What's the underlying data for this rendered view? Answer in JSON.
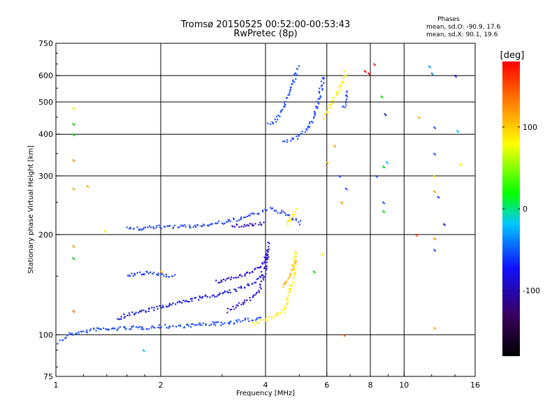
{
  "chart_data": {
    "type": "scatter",
    "title": "Tromsø 20150525 00:52:00-00:53:43",
    "subtitle": "RwPretec (8p)",
    "xlabel": "Frequency [MHz]",
    "ylabel": "Stationary phase Virtual Height [km]",
    "x_scale": "log",
    "y_scale": "log",
    "xlim": [
      1,
      16
    ],
    "ylim": [
      75,
      750
    ],
    "x_ticks": [
      1,
      2,
      4,
      6,
      8,
      10,
      16
    ],
    "y_ticks": [
      75,
      100,
      200,
      300,
      400,
      500,
      600,
      750
    ],
    "grid": true,
    "stats": {
      "heading": "Phases",
      "line_o": "mean, sd,O: -90.9, 17.6",
      "line_x": "mean, sd,X:  90.1, 19.6"
    },
    "colorbar": {
      "label": "[deg]",
      "ticks": [
        "100",
        "0",
        "-100"
      ],
      "tick_values": [
        100,
        0,
        -100
      ],
      "range": [
        -180,
        180
      ],
      "colors": [
        "#000000",
        "#3a0060",
        "#1010ff",
        "#00c8ff",
        "#00ff00",
        "#ffff00",
        "#ff8000",
        "#ff0000"
      ]
    },
    "traces": [
      {
        "color": "#1e50ff",
        "points": [
          [
            1.02,
            95
          ],
          [
            1.05,
            97
          ],
          [
            1.08,
            100
          ],
          [
            1.12,
            101
          ],
          [
            1.2,
            102
          ],
          [
            1.3,
            104
          ],
          [
            1.45,
            104
          ],
          [
            1.6,
            105
          ],
          [
            1.8,
            105
          ],
          [
            2.0,
            106
          ],
          [
            2.2,
            106
          ],
          [
            2.5,
            107
          ],
          [
            2.8,
            108
          ],
          [
            3.0,
            108
          ],
          [
            3.2,
            109
          ],
          [
            3.4,
            110
          ],
          [
            3.6,
            111
          ],
          [
            3.8,
            112
          ],
          [
            3.9,
            114
          ]
        ]
      },
      {
        "color": "#1a20e0",
        "points": [
          [
            1.5,
            112
          ],
          [
            1.6,
            115
          ],
          [
            1.8,
            118
          ],
          [
            2.0,
            121
          ],
          [
            2.2,
            124
          ],
          [
            2.4,
            127
          ],
          [
            2.6,
            129
          ],
          [
            2.8,
            131
          ],
          [
            3.0,
            133
          ],
          [
            3.2,
            135
          ],
          [
            3.4,
            138
          ],
          [
            3.6,
            142
          ],
          [
            3.8,
            147
          ],
          [
            3.95,
            155
          ]
        ]
      },
      {
        "color": "#2a10c8",
        "points": [
          [
            2.9,
            144
          ],
          [
            3.0,
            146
          ],
          [
            3.2,
            148
          ],
          [
            3.4,
            150
          ],
          [
            3.6,
            153
          ],
          [
            3.8,
            158
          ],
          [
            3.9,
            163
          ],
          [
            4.0,
            170
          ],
          [
            4.05,
            180
          ]
        ]
      },
      {
        "color": "#3a1cd0",
        "points": [
          [
            3.1,
            118
          ],
          [
            3.3,
            122
          ],
          [
            3.5,
            126
          ],
          [
            3.7,
            130
          ],
          [
            3.85,
            138
          ],
          [
            3.95,
            147
          ],
          [
            4.0,
            160
          ],
          [
            4.05,
            175
          ],
          [
            4.1,
            190
          ]
        ]
      },
      {
        "color": "#1e3cff",
        "points": [
          [
            1.6,
            150
          ],
          [
            1.7,
            152
          ],
          [
            1.8,
            153
          ],
          [
            1.9,
            153
          ],
          [
            2.0,
            152
          ],
          [
            2.1,
            151
          ],
          [
            2.2,
            150
          ]
        ]
      },
      {
        "color": "#2a4cf0",
        "points": [
          [
            1.6,
            210
          ],
          [
            1.7,
            208
          ],
          [
            1.8,
            209
          ],
          [
            1.9,
            210
          ],
          [
            2.0,
            211
          ],
          [
            2.3,
            211
          ],
          [
            2.5,
            212
          ],
          [
            2.7,
            214
          ],
          [
            2.9,
            216
          ],
          [
            3.1,
            218
          ],
          [
            3.3,
            222
          ],
          [
            3.5,
            226
          ],
          [
            3.7,
            230
          ],
          [
            3.9,
            234
          ],
          [
            4.1,
            238
          ],
          [
            4.3,
            236
          ],
          [
            4.5,
            232
          ],
          [
            4.7,
            226
          ],
          [
            4.9,
            220
          ],
          [
            5.1,
            215
          ]
        ]
      },
      {
        "color": "#3a10c0",
        "points": [
          [
            3.2,
            212
          ],
          [
            3.4,
            213
          ],
          [
            3.6,
            214
          ],
          [
            3.8,
            215
          ],
          [
            4.0,
            216
          ]
        ]
      },
      {
        "color": "#ffee00",
        "points": [
          [
            3.7,
            108
          ],
          [
            3.9,
            110
          ],
          [
            4.1,
            112
          ],
          [
            4.3,
            115
          ],
          [
            4.5,
            118
          ],
          [
            4.6,
            125
          ],
          [
            4.7,
            135
          ],
          [
            4.8,
            150
          ],
          [
            4.85,
            165
          ],
          [
            4.9,
            180
          ]
        ]
      },
      {
        "color": "#ffb400",
        "points": [
          [
            4.5,
            140
          ],
          [
            4.6,
            145
          ],
          [
            4.7,
            150
          ],
          [
            4.8,
            160
          ],
          [
            4.9,
            170
          ]
        ]
      },
      {
        "color": "#ffee00",
        "points": [
          [
            4.6,
            215
          ],
          [
            4.7,
            222
          ],
          [
            4.8,
            230
          ],
          [
            4.9,
            240
          ]
        ]
      },
      {
        "color": "#1e50ff",
        "points": [
          [
            4.05,
            430
          ],
          [
            4.15,
            432
          ],
          [
            4.3,
            440
          ],
          [
            4.45,
            470
          ],
          [
            4.6,
            510
          ],
          [
            4.7,
            545
          ],
          [
            4.8,
            580
          ],
          [
            4.9,
            610
          ],
          [
            5.0,
            640
          ]
        ]
      },
      {
        "color": "#1e50ff",
        "points": [
          [
            4.5,
            380
          ],
          [
            4.6,
            382
          ],
          [
            4.75,
            386
          ],
          [
            4.9,
            392
          ],
          [
            5.05,
            400
          ],
          [
            5.2,
            410
          ],
          [
            5.35,
            425
          ],
          [
            5.5,
            445
          ],
          [
            5.6,
            480
          ],
          [
            5.7,
            520
          ],
          [
            5.8,
            560
          ],
          [
            5.85,
            600
          ]
        ]
      },
      {
        "color": "#ffee00",
        "points": [
          [
            5.9,
            450
          ],
          [
            6.1,
            480
          ],
          [
            6.3,
            510
          ],
          [
            6.5,
            540
          ],
          [
            6.7,
            580
          ],
          [
            6.8,
            620
          ]
        ]
      },
      {
        "color": "#3050ff",
        "points": [
          [
            6.7,
            480
          ],
          [
            6.8,
            510
          ],
          [
            6.9,
            540
          ]
        ]
      }
    ],
    "points": [
      {
        "x": 1.12,
        "y": 480,
        "color": "#ffee00"
      },
      {
        "x": 1.12,
        "y": 430,
        "color": "#00dd00"
      },
      {
        "x": 1.12,
        "y": 400,
        "color": "#00dd00"
      },
      {
        "x": 1.12,
        "y": 335,
        "color": "#ff9000"
      },
      {
        "x": 1.12,
        "y": 275,
        "color": "#ffaa00"
      },
      {
        "x": 1.23,
        "y": 280,
        "color": "#ffaa00"
      },
      {
        "x": 1.12,
        "y": 185,
        "color": "#ffaa00"
      },
      {
        "x": 1.12,
        "y": 170,
        "color": "#00dd00"
      },
      {
        "x": 1.12,
        "y": 118,
        "color": "#ff7000"
      },
      {
        "x": 1.38,
        "y": 205,
        "color": "#ffee00"
      },
      {
        "x": 1.78,
        "y": 90,
        "color": "#00c8ff"
      },
      {
        "x": 2.0,
        "y": 155,
        "color": "#ffaa00"
      },
      {
        "x": 5.5,
        "y": 155,
        "color": "#00dd00"
      },
      {
        "x": 5.8,
        "y": 175,
        "color": "#ffee00"
      },
      {
        "x": 6.0,
        "y": 330,
        "color": "#ffaa00"
      },
      {
        "x": 6.3,
        "y": 370,
        "color": "#ffaa00"
      },
      {
        "x": 6.5,
        "y": 300,
        "color": "#3050ff"
      },
      {
        "x": 6.6,
        "y": 250,
        "color": "#ff9000"
      },
      {
        "x": 6.8,
        "y": 275,
        "color": "#1e50ff"
      },
      {
        "x": 6.7,
        "y": 100,
        "color": "#ff6000"
      },
      {
        "x": 7.7,
        "y": 620,
        "color": "#ff0000"
      },
      {
        "x": 7.9,
        "y": 610,
        "color": "#ff0000"
      },
      {
        "x": 8.2,
        "y": 650,
        "color": "#ff3000"
      },
      {
        "x": 8.3,
        "y": 300,
        "color": "#1e50ff"
      },
      {
        "x": 8.6,
        "y": 520,
        "color": "#00dd00"
      },
      {
        "x": 8.7,
        "y": 320,
        "color": "#00dd00"
      },
      {
        "x": 8.7,
        "y": 250,
        "color": "#1e50ff"
      },
      {
        "x": 8.7,
        "y": 235,
        "color": "#00dd00"
      },
      {
        "x": 8.8,
        "y": 460,
        "color": "#1020c0"
      },
      {
        "x": 8.9,
        "y": 330,
        "color": "#00c8ff"
      },
      {
        "x": 10.8,
        "y": 200,
        "color": "#ff4000"
      },
      {
        "x": 11.0,
        "y": 450,
        "color": "#ffaa00"
      },
      {
        "x": 11.8,
        "y": 640,
        "color": "#00a0ff"
      },
      {
        "x": 12.0,
        "y": 610,
        "color": "#00a0ff"
      },
      {
        "x": 12.2,
        "y": 420,
        "color": "#1e50ff"
      },
      {
        "x": 12.2,
        "y": 350,
        "color": "#1e50ff"
      },
      {
        "x": 12.2,
        "y": 300,
        "color": "#ffee00"
      },
      {
        "x": 12.2,
        "y": 270,
        "color": "#ffaa00"
      },
      {
        "x": 12.5,
        "y": 260,
        "color": "#1e50ff"
      },
      {
        "x": 12.2,
        "y": 180,
        "color": "#1e50ff"
      },
      {
        "x": 12.2,
        "y": 195,
        "color": "#ff9000"
      },
      {
        "x": 12.2,
        "y": 105,
        "color": "#ffaa00"
      },
      {
        "x": 13.0,
        "y": 215,
        "color": "#3a10c0"
      },
      {
        "x": 14.0,
        "y": 600,
        "color": "#3a10c0"
      },
      {
        "x": 14.2,
        "y": 410,
        "color": "#00c8ff"
      },
      {
        "x": 14.5,
        "y": 325,
        "color": "#ffee00"
      }
    ]
  }
}
